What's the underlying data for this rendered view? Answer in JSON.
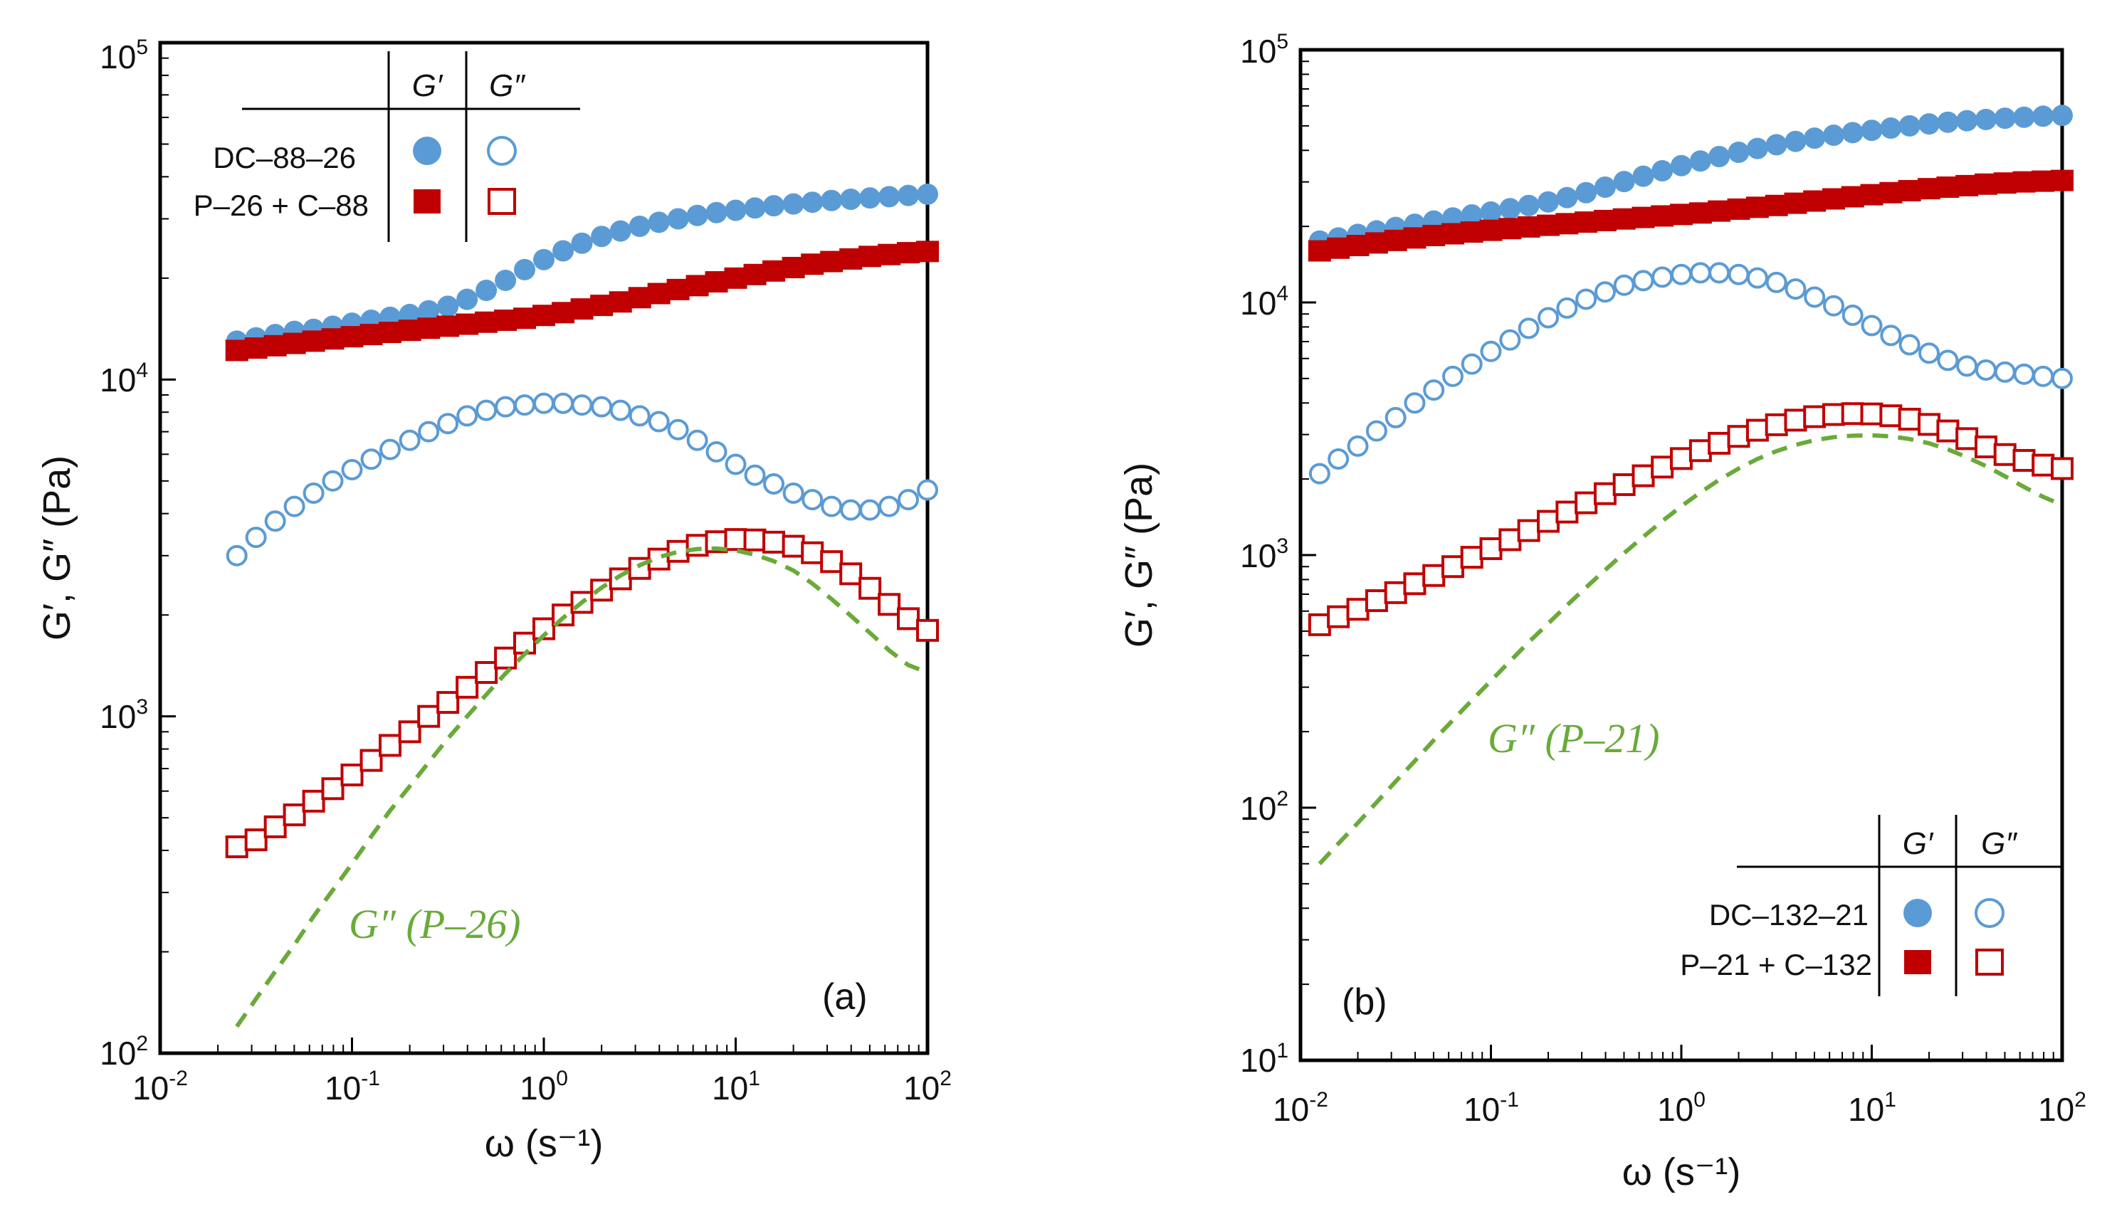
{
  "chart_data": [
    {
      "type": "scatter",
      "panel_label": "(a)",
      "xlabel": "ω (s⁻¹)",
      "ylabel": "G′, G″ (Pa)",
      "x_log": true,
      "y_log": true,
      "xlim": [
        0.01,
        100
      ],
      "ylim": [
        100,
        100000
      ],
      "x_tick_labels": [
        {
          "base": "10",
          "exp": "-2"
        },
        {
          "base": "10",
          "exp": "-1"
        },
        {
          "base": "10",
          "exp": "0"
        },
        {
          "base": "10",
          "exp": "1"
        },
        {
          "base": "10",
          "exp": "2"
        }
      ],
      "y_tick_labels": [
        {
          "base": "10",
          "exp": "2"
        },
        {
          "base": "10",
          "exp": "3"
        },
        {
          "base": "10",
          "exp": "4"
        },
        {
          "base": "10",
          "exp": "5"
        }
      ],
      "legend": {
        "position": "top-left",
        "col_headers": [
          "G′",
          "G″"
        ],
        "rows": [
          "DC–88–26",
          "P–26 + C–88"
        ]
      },
      "ref_label": "G″ (P–26)",
      "x": [
        0.0251,
        0.0316,
        0.0398,
        0.0501,
        0.0631,
        0.0794,
        0.1,
        0.126,
        0.158,
        0.2,
        0.251,
        0.316,
        0.398,
        0.501,
        0.631,
        0.794,
        1.0,
        1.26,
        1.58,
        2.0,
        2.51,
        3.16,
        3.98,
        5.01,
        6.31,
        7.94,
        10.0,
        12.6,
        15.8,
        20.0,
        25.1,
        31.6,
        39.8,
        50.1,
        63.1,
        79.4,
        100.0
      ],
      "series": [
        {
          "name": "DC–88–26 G′",
          "marker": "circle",
          "filled": true,
          "color": "#5b9bd5",
          "values": [
            13000,
            13300,
            13600,
            13900,
            14100,
            14400,
            14700,
            15000,
            15300,
            15600,
            16000,
            16500,
            17300,
            18400,
            19700,
            21200,
            22700,
            24100,
            25400,
            26600,
            27600,
            28500,
            29300,
            30000,
            30700,
            31300,
            31800,
            32300,
            32800,
            33200,
            33600,
            34000,
            34300,
            34600,
            34900,
            35200,
            35500
          ]
        },
        {
          "name": "DC–88–26 G″",
          "marker": "circle",
          "filled": false,
          "color": "#5b9bd5",
          "values": [
            3000,
            3400,
            3800,
            4200,
            4600,
            5000,
            5400,
            5800,
            6200,
            6600,
            7000,
            7400,
            7800,
            8100,
            8300,
            8400,
            8500,
            8500,
            8400,
            8300,
            8100,
            7800,
            7500,
            7100,
            6600,
            6100,
            5600,
            5200,
            4900,
            4600,
            4400,
            4200,
            4100,
            4100,
            4200,
            4400,
            4700
          ]
        },
        {
          "name": "P–26 + C–88 G′",
          "marker": "square",
          "filled": true,
          "color": "#c00000",
          "values": [
            12200,
            12400,
            12600,
            12800,
            13000,
            13200,
            13400,
            13600,
            13800,
            14000,
            14200,
            14400,
            14600,
            14800,
            15000,
            15200,
            15500,
            15800,
            16200,
            16600,
            17000,
            17500,
            18000,
            18500,
            19000,
            19500,
            20000,
            20500,
            21000,
            21500,
            22000,
            22400,
            22800,
            23200,
            23500,
            23800,
            24000
          ]
        },
        {
          "name": "P–26 + C–88 G″",
          "marker": "square",
          "filled": false,
          "color": "#c00000",
          "values": [
            410,
            430,
            470,
            510,
            560,
            610,
            670,
            740,
            820,
            900,
            1000,
            1100,
            1220,
            1350,
            1490,
            1650,
            1820,
            2000,
            2180,
            2370,
            2560,
            2750,
            2930,
            3090,
            3220,
            3300,
            3350,
            3340,
            3290,
            3200,
            3060,
            2880,
            2650,
            2400,
            2150,
            1950,
            1800
          ]
        },
        {
          "name": "G″ (P–26)",
          "marker": "dashed-line",
          "color": "#6aaa3a",
          "values": [
            120,
            145,
            175,
            210,
            255,
            305,
            365,
            440,
            525,
            620,
            730,
            860,
            1000,
            1160,
            1340,
            1530,
            1740,
            1960,
            2180,
            2410,
            2620,
            2810,
            2970,
            3080,
            3140,
            3150,
            3110,
            3020,
            2890,
            2710,
            2480,
            2230,
            1990,
            1770,
            1570,
            1420,
            1350
          ]
        }
      ]
    },
    {
      "type": "scatter",
      "panel_label": "(b)",
      "xlabel": "ω (s⁻¹)",
      "ylabel": "G′, G″ (Pa)",
      "x_log": true,
      "y_log": true,
      "xlim": [
        0.01,
        100
      ],
      "ylim": [
        10,
        100000
      ],
      "x_tick_labels": [
        {
          "base": "10",
          "exp": "-2"
        },
        {
          "base": "10",
          "exp": "-1"
        },
        {
          "base": "10",
          "exp": "0"
        },
        {
          "base": "10",
          "exp": "1"
        },
        {
          "base": "10",
          "exp": "2"
        }
      ],
      "y_tick_labels": [
        {
          "base": "10",
          "exp": "1"
        },
        {
          "base": "10",
          "exp": "2"
        },
        {
          "base": "10",
          "exp": "3"
        },
        {
          "base": "10",
          "exp": "4"
        },
        {
          "base": "10",
          "exp": "5"
        }
      ],
      "legend": {
        "position": "bottom-right",
        "col_headers": [
          "G′",
          "G″"
        ],
        "rows": [
          "DC–132–21",
          "P–21 + C–132"
        ]
      },
      "ref_label": "G″ (P–21)",
      "x": [
        0.0126,
        0.0158,
        0.02,
        0.0251,
        0.0316,
        0.0398,
        0.0501,
        0.0631,
        0.0794,
        0.1,
        0.126,
        0.158,
        0.2,
        0.251,
        0.316,
        0.398,
        0.501,
        0.631,
        0.794,
        1.0,
        1.26,
        1.58,
        2.0,
        2.51,
        3.16,
        3.98,
        5.01,
        6.31,
        7.94,
        10.0,
        12.6,
        15.8,
        20.0,
        25.1,
        31.6,
        39.8,
        50.1,
        63.1,
        79.4,
        100.0
      ],
      "series": [
        {
          "name": "DC–132–21 G′",
          "marker": "circle",
          "filled": true,
          "color": "#5b9bd5",
          "values": [
            17500,
            18000,
            18600,
            19200,
            19800,
            20400,
            21000,
            21600,
            22200,
            22800,
            23500,
            24200,
            25000,
            26000,
            27200,
            28600,
            30100,
            31600,
            33200,
            34800,
            36300,
            37800,
            39300,
            40700,
            42100,
            43400,
            44700,
            45900,
            47000,
            48000,
            49000,
            50000,
            50900,
            51700,
            52400,
            53000,
            53600,
            54100,
            54600,
            55000
          ]
        },
        {
          "name": "DC–132–21 G″",
          "marker": "circle",
          "filled": false,
          "color": "#5b9bd5",
          "values": [
            2100,
            2400,
            2700,
            3100,
            3500,
            4000,
            4500,
            5100,
            5700,
            6400,
            7100,
            7900,
            8700,
            9500,
            10300,
            11000,
            11700,
            12200,
            12600,
            12900,
            13100,
            13100,
            12900,
            12500,
            12000,
            11300,
            10500,
            9700,
            8900,
            8100,
            7400,
            6800,
            6300,
            5900,
            5600,
            5400,
            5300,
            5200,
            5100,
            5000
          ]
        },
        {
          "name": "P–21 + C–132 G′",
          "marker": "square",
          "filled": true,
          "color": "#c00000",
          "values": [
            16000,
            16400,
            16800,
            17200,
            17600,
            18000,
            18400,
            18700,
            19000,
            19300,
            19600,
            19900,
            20200,
            20500,
            20800,
            21100,
            21400,
            21700,
            22000,
            22300,
            22600,
            23000,
            23400,
            23800,
            24200,
            24700,
            25200,
            25700,
            26200,
            26700,
            27200,
            27700,
            28200,
            28600,
            29000,
            29400,
            29700,
            30000,
            30200,
            30400
          ]
        },
        {
          "name": "P–21 + C–132 G″",
          "marker": "square",
          "filled": false,
          "color": "#c00000",
          "values": [
            530,
            570,
            610,
            660,
            710,
            770,
            830,
            900,
            980,
            1060,
            1150,
            1250,
            1360,
            1480,
            1610,
            1750,
            1900,
            2060,
            2230,
            2410,
            2590,
            2770,
            2950,
            3120,
            3280,
            3420,
            3530,
            3600,
            3630,
            3620,
            3560,
            3450,
            3290,
            3100,
            2890,
            2680,
            2500,
            2370,
            2270,
            2200
          ]
        },
        {
          "name": "G″ (P–21)",
          "marker": "dashed-line",
          "color": "#6aaa3a",
          "values": [
            60,
            72,
            87,
            105,
            127,
            153,
            185,
            222,
            266,
            318,
            380,
            452,
            536,
            633,
            745,
            873,
            1018,
            1181,
            1363,
            1560,
            1770,
            1985,
            2200,
            2400,
            2580,
            2730,
            2850,
            2930,
            2970,
            2980,
            2950,
            2880,
            2770,
            2620,
            2440,
            2250,
            2050,
            1860,
            1700,
            1580
          ]
        }
      ]
    }
  ]
}
